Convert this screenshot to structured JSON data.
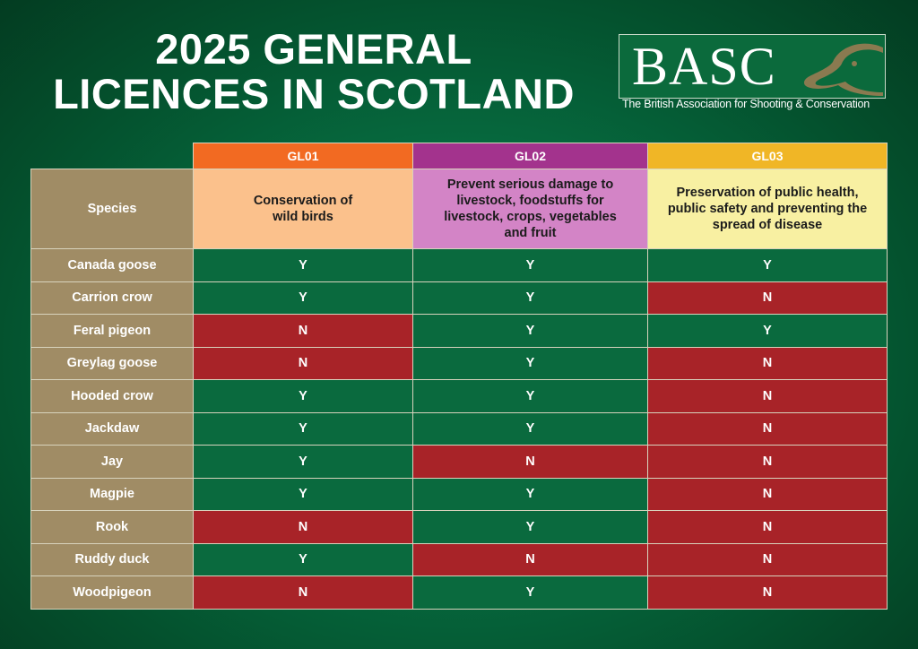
{
  "title": {
    "line1": "2025 GENERAL",
    "line2": "LICENCES IN SCOTLAND"
  },
  "logo": {
    "text": "BASC",
    "subtitle": "The British Association for Shooting & Conservation"
  },
  "table": {
    "species_header": "Species",
    "columns": [
      {
        "code": "GL01",
        "description": "Conservation of wild birds",
        "color": "#f26a22"
      },
      {
        "code": "GL02",
        "description": "Prevent serious damage to livestock, foodstuffs for livestock, crops, vegetables and fruit",
        "color": "#a3338d"
      },
      {
        "code": "GL03",
        "description": "Preservation of public health, public safety and preventing the spread of disease",
        "color": "#f0b626"
      }
    ],
    "rows": [
      {
        "species": "Canada goose",
        "values": [
          "Y",
          "Y",
          "Y"
        ]
      },
      {
        "species": "Carrion crow",
        "values": [
          "Y",
          "Y",
          "N"
        ]
      },
      {
        "species": "Feral pigeon",
        "values": [
          "N",
          "Y",
          "Y"
        ]
      },
      {
        "species": "Greylag goose",
        "values": [
          "N",
          "Y",
          "N"
        ]
      },
      {
        "species": "Hooded crow",
        "values": [
          "Y",
          "Y",
          "N"
        ]
      },
      {
        "species": "Jackdaw",
        "values": [
          "Y",
          "Y",
          "N"
        ]
      },
      {
        "species": "Jay",
        "values": [
          "Y",
          "N",
          "N"
        ]
      },
      {
        "species": "Magpie",
        "values": [
          "Y",
          "Y",
          "N"
        ]
      },
      {
        "species": "Rook",
        "values": [
          "N",
          "Y",
          "N"
        ]
      },
      {
        "species": "Ruddy duck",
        "values": [
          "Y",
          "N",
          "N"
        ]
      },
      {
        "species": "Woodpigeon",
        "values": [
          "N",
          "Y",
          "N"
        ]
      }
    ]
  },
  "colors": {
    "yes": "#0a6a3e",
    "no": "#a82328",
    "species": "#a08c65",
    "background": "#066a3f"
  }
}
